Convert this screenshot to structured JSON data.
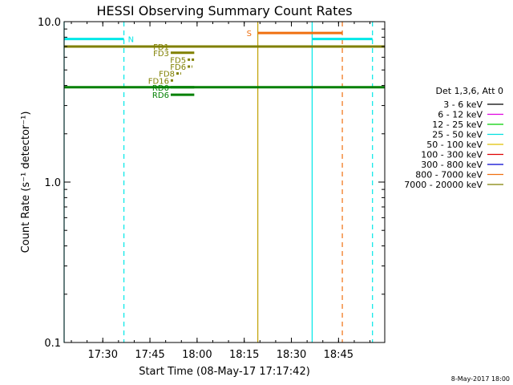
{
  "chart_data": {
    "type": "line",
    "title": "HESSI Observing Summary Count Rates",
    "xlabel": "Start Time (08-May-17 17:17:42)",
    "ylabel": "Count Rate (s⁻¹ detector⁻¹)",
    "xlim": [
      17.295,
      18.995
    ],
    "ylim": [
      0.1,
      10.0
    ],
    "yscale": "log",
    "x_ticks": [
      {
        "x": 17.5,
        "label": "17:30"
      },
      {
        "x": 17.75,
        "label": "17:45"
      },
      {
        "x": 18.0,
        "label": "18:00"
      },
      {
        "x": 18.25,
        "label": "18:15"
      },
      {
        "x": 18.5,
        "label": "18:30"
      },
      {
        "x": 18.75,
        "label": "18:45"
      }
    ],
    "y_ticks": [
      {
        "y": 10.0,
        "label": "10.0"
      },
      {
        "y": 1.0,
        "label": "1.0"
      },
      {
        "y": 0.1,
        "label": "0.1"
      }
    ],
    "legend": {
      "position": "right",
      "title": "Det 1,3,6, Att 0",
      "entries": [
        {
          "label": "3 - 6 keV",
          "color": "#000000"
        },
        {
          "label": "6 - 12 keV",
          "color": "#e000e0"
        },
        {
          "label": "12 - 25 keV",
          "color": "#00d000"
        },
        {
          "label": "25 - 50 keV",
          "color": "#00e0e0"
        },
        {
          "label": "50 - 100 keV",
          "color": "#e0c000"
        },
        {
          "label": "100 - 300 keV",
          "color": "#e00000"
        },
        {
          "label": "300 - 800 keV",
          "color": "#0000d0"
        },
        {
          "label": "800 - 7000 keV",
          "color": "#f07010"
        },
        {
          "label": "7000 - 20000 keV",
          "color": "#808000"
        }
      ]
    },
    "series": [
      {
        "name": "7000 - 20000 keV",
        "color": "#808000",
        "points": [
          [
            17.295,
            7.0
          ],
          [
            18.995,
            7.0
          ]
        ]
      },
      {
        "color": "#008000",
        "points": [
          [
            17.295,
            3.9
          ],
          [
            18.995,
            3.9
          ]
        ]
      }
    ],
    "flag_segments": [
      {
        "label": "N",
        "color": "#00e8e8",
        "x": [
          17.295,
          17.612
        ],
        "y": 7.8
      },
      {
        "label": "",
        "color": "#00e8e8",
        "x": [
          18.61,
          18.93
        ],
        "y": 7.8
      },
      {
        "label": "S",
        "color": "#f07010",
        "x": [
          18.322,
          18.77
        ],
        "y": 8.5
      }
    ],
    "vertical_lines": [
      {
        "x": 17.295,
        "color": "#00e8e8",
        "style": "solid"
      },
      {
        "x": 17.612,
        "color": "#00e8e8",
        "style": "dashed"
      },
      {
        "x": 18.322,
        "color": "#c0a000",
        "style": "solid"
      },
      {
        "x": 18.61,
        "color": "#00e8e8",
        "style": "solid"
      },
      {
        "x": 18.77,
        "color": "#f07010",
        "style": "dashed"
      },
      {
        "x": 18.93,
        "color": "#00e8e8",
        "style": "dashed"
      }
    ],
    "decimation_marks": [
      {
        "label": "FD1",
        "color": "#808000",
        "y": 7.0,
        "x": [
          17.86,
          17.985
        ]
      },
      {
        "label": "FD3",
        "color": "#808000",
        "y": 6.4,
        "x": [
          17.86,
          17.985
        ]
      },
      {
        "label": "FD5",
        "color": "#808000",
        "y": 5.8,
        "x": [
          17.95,
          17.985
        ]
      },
      {
        "label": "FD6",
        "color": "#808000",
        "y": 5.25,
        "x": [
          17.95,
          17.975
        ]
      },
      {
        "label": "FD8",
        "color": "#808000",
        "y": 4.75,
        "x": [
          17.89,
          17.915
        ]
      },
      {
        "label": "FD16",
        "color": "#808000",
        "y": 4.3,
        "x": [
          17.86,
          17.875
        ]
      },
      {
        "label": "RD0",
        "color": "#008000",
        "y": 3.9,
        "x": [
          17.86,
          17.985
        ]
      },
      {
        "label": "RD6",
        "color": "#008000",
        "y": 3.5,
        "x": [
          17.86,
          17.985
        ]
      }
    ]
  },
  "footer": {
    "timestamp": "8-May-2017 18:00"
  }
}
